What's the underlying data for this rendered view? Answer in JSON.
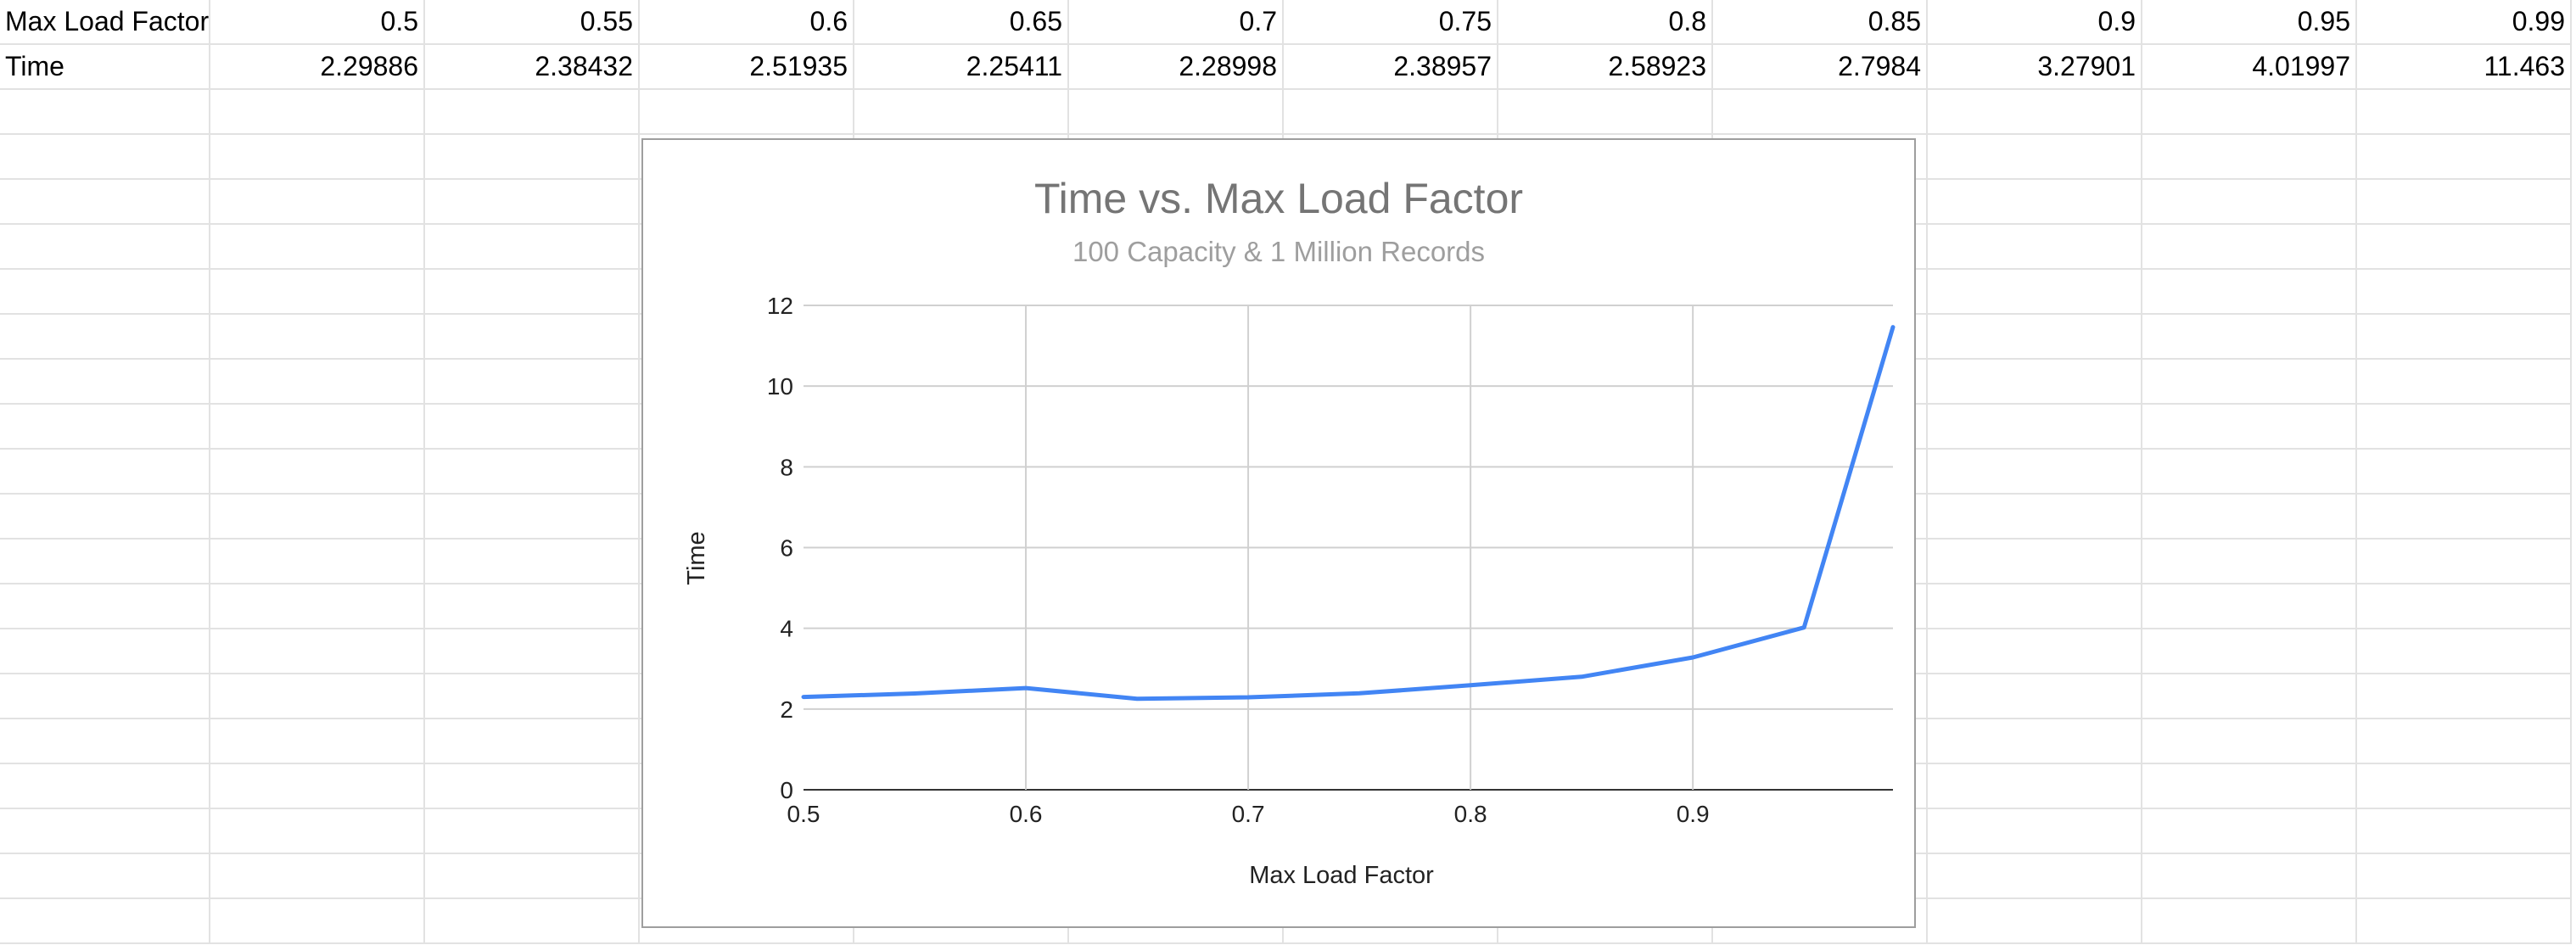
{
  "sheet": {
    "rows": [
      {
        "label": "Max Load Factor",
        "values": [
          "0.5",
          "0.55",
          "0.6",
          "0.65",
          "0.7",
          "0.75",
          "0.8",
          "0.85",
          "0.9",
          "0.95",
          "0.99"
        ]
      },
      {
        "label": "Time",
        "values": [
          "2.29886",
          "2.38432",
          "2.51935",
          "2.25411",
          "2.28998",
          "2.38957",
          "2.58923",
          "2.7984",
          "3.27901",
          "4.01997",
          "11.463"
        ]
      }
    ]
  },
  "chart_data": {
    "type": "line",
    "title": "Time vs. Max Load Factor",
    "subtitle": "100 Capacity & 1 Million Records",
    "xlabel": "Max Load Factor",
    "ylabel": "Time",
    "xlim": [
      0.5,
      0.99
    ],
    "ylim": [
      0,
      12
    ],
    "xticks": [
      "0.5",
      "0.6",
      "0.7",
      "0.8",
      "0.9"
    ],
    "yticks": [
      "0",
      "2",
      "4",
      "6",
      "8",
      "10",
      "12"
    ],
    "grid": true,
    "line_color": "#4285f4",
    "x": [
      0.5,
      0.55,
      0.6,
      0.65,
      0.7,
      0.75,
      0.8,
      0.85,
      0.9,
      0.95,
      0.99
    ],
    "series": [
      {
        "values": [
          2.29886,
          2.38432,
          2.51935,
          2.25411,
          2.28998,
          2.38957,
          2.58923,
          2.7984,
          3.27901,
          4.01997,
          11.463
        ]
      }
    ]
  }
}
